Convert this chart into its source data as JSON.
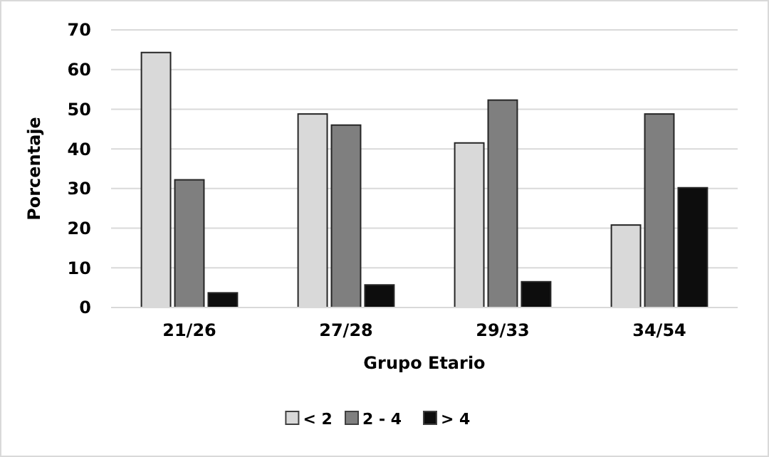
{
  "chart_data": {
    "type": "bar",
    "xlabel": "Grupo Etario",
    "ylabel": "Porcentaje",
    "categories": [
      "21/26",
      "27/28",
      "29/33",
      "34/54"
    ],
    "series": [
      {
        "name": "< 2",
        "color": "#d9d9d9",
        "values": [
          64.3,
          48.8,
          41.5,
          20.8
        ]
      },
      {
        "name": "2 - 4",
        "color": "#7f7f7f",
        "values": [
          32.2,
          46,
          52.3,
          48.8
        ]
      },
      {
        "name": "> 4",
        "color": "#0d0d0d",
        "values": [
          3.7,
          5.7,
          6.5,
          30.2
        ]
      }
    ],
    "ylim": [
      0,
      70
    ],
    "yticks": [
      0,
      10,
      20,
      30,
      40,
      50,
      60,
      70
    ],
    "grid": "y",
    "legend": "bottom"
  }
}
